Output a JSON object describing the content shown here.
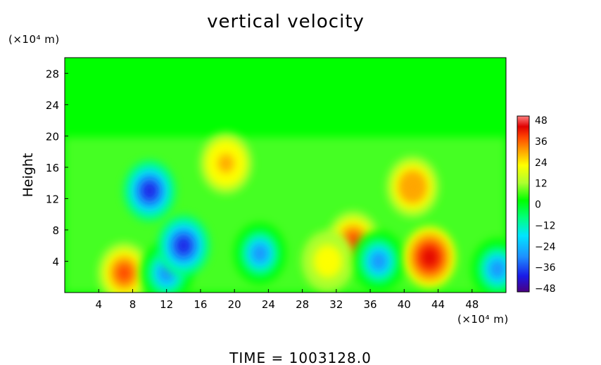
{
  "chart_data": {
    "type": "heatmap",
    "title": "vertical velocity",
    "ylabel": "Height",
    "y_unit": "(×10⁴ m)",
    "x_unit": "(×10⁴ m)",
    "xlim": [
      0,
      52
    ],
    "ylim": [
      0,
      30
    ],
    "x_ticks": [
      4,
      8,
      12,
      16,
      20,
      24,
      28,
      32,
      36,
      40,
      44,
      48
    ],
    "y_ticks": [
      4,
      8,
      12,
      16,
      20,
      24,
      28
    ],
    "colorbar": {
      "range": [
        -48,
        48
      ],
      "ticks": [
        48,
        36,
        24,
        12,
        0,
        -12,
        -24,
        -36,
        -48
      ],
      "colors": [
        "#4b0082",
        "#1a1ae6",
        "#1e90ff",
        "#00e5ff",
        "#00ff7f",
        "#00ff00",
        "#adff2f",
        "#ffff00",
        "#ffa500",
        "#ff4500",
        "#e00000",
        "#ff8080"
      ]
    },
    "background_value": 0,
    "features": [
      {
        "type": "updraft",
        "x": 7,
        "y": 2.5,
        "value": 32
      },
      {
        "type": "downdraft",
        "x": 10,
        "y": 13,
        "value": -40
      },
      {
        "type": "downdraft",
        "x": 12,
        "y": 2.5,
        "value": -34
      },
      {
        "type": "downdraft",
        "x": 14,
        "y": 6,
        "value": -36
      },
      {
        "type": "updraft",
        "x": 19,
        "y": 16.5,
        "value": 18
      },
      {
        "type": "downdraft",
        "x": 23,
        "y": 5,
        "value": -28
      },
      {
        "type": "updraft",
        "x": 34,
        "y": 6.5,
        "value": 34
      },
      {
        "type": "updraft",
        "x": 31,
        "y": 4,
        "value": 14
      },
      {
        "type": "downdraft",
        "x": 37,
        "y": 4,
        "value": -30
      },
      {
        "type": "updraft",
        "x": 41,
        "y": 13.5,
        "value": 26
      },
      {
        "type": "updraft",
        "x": 43,
        "y": 4.5,
        "value": 38
      },
      {
        "type": "downdraft",
        "x": 51,
        "y": 3,
        "value": -34
      }
    ]
  },
  "footer": {
    "time_label": "TIME  =  1003128.0"
  }
}
